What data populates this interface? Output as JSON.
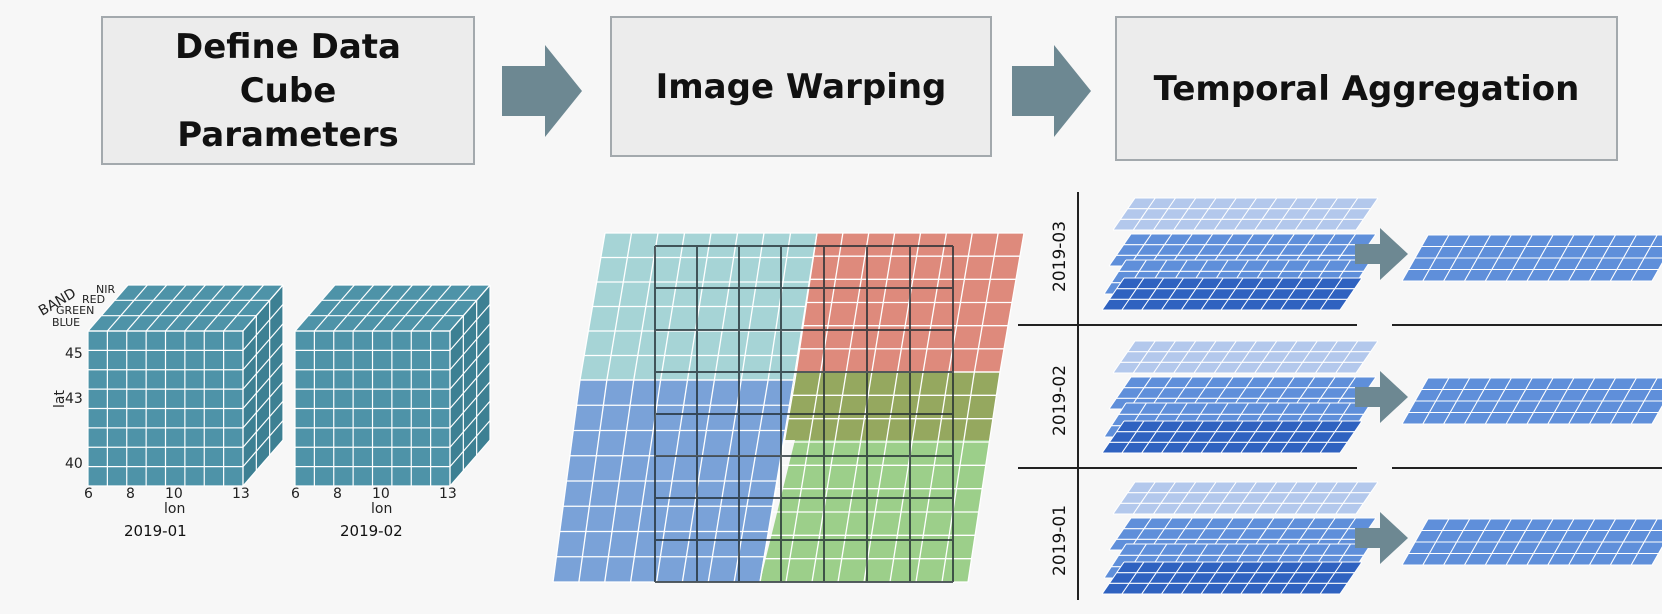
{
  "steps": {
    "define": "Define Data Cube Parameters",
    "warp": "Image Warping",
    "aggregate": "Temporal Aggregation"
  },
  "cube_axes": {
    "band_label": "BAND",
    "bands": [
      "NIR",
      "RED",
      "GREEN",
      "BLUE"
    ],
    "lat_label": "lat",
    "lat_ticks": [
      "45",
      "43",
      "40"
    ],
    "lon_label": "lon",
    "lon_ticks": [
      "6",
      "8",
      "10",
      "13"
    ]
  },
  "cubes": [
    {
      "date": "2019-01"
    },
    {
      "date": "2019-02"
    }
  ],
  "periods": [
    "2019-03",
    "2019-02",
    "2019-01"
  ],
  "colors": {
    "cube_face": "#4e93a8",
    "cube_side": "#3d8093",
    "tile_teal": "#a6d4d6",
    "tile_red": "#de8a7c",
    "tile_blue": "#7aa2d8",
    "tile_green": "#9ccf8a",
    "tile_olive": "#8a9f4e",
    "arrow": "#6d8892",
    "layer_light": "#b3c8ec",
    "layer_mid": "#5f8fda",
    "layer_dark": "#2f62c0"
  }
}
